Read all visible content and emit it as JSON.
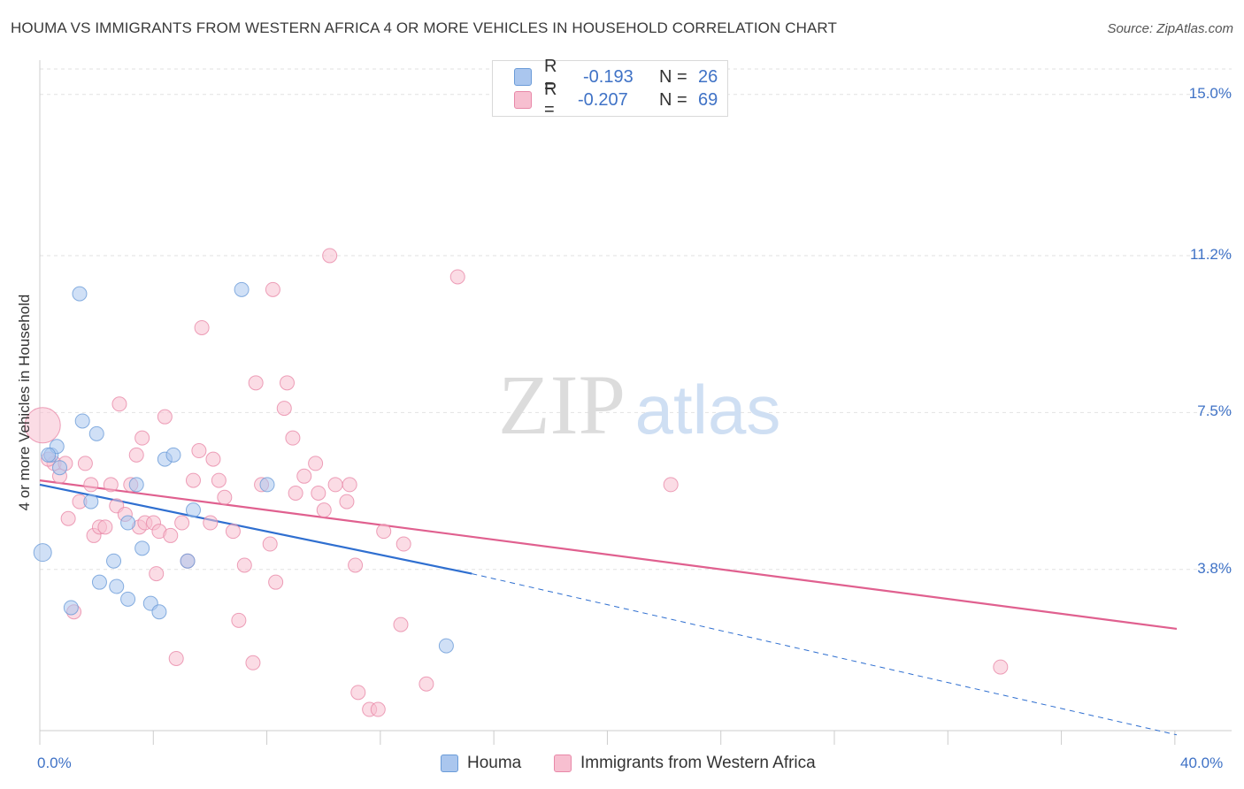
{
  "title": "HOUMA VS IMMIGRANTS FROM WESTERN AFRICA 4 OR MORE VEHICLES IN HOUSEHOLD CORRELATION CHART",
  "source": "Source: ZipAtlas.com",
  "watermark": {
    "zip": "ZIP",
    "atlas": "atlas"
  },
  "legend_top": {
    "rows": [
      {
        "r_label": "R =",
        "r_value": "-0.193",
        "n_label": "N =",
        "n_value": "26",
        "color": "#aac6ee",
        "border": "#6a9bd8"
      },
      {
        "r_label": "R =",
        "r_value": "-0.207",
        "n_label": "N =",
        "n_value": "69",
        "color": "#f7bfd0",
        "border": "#e888a8"
      }
    ]
  },
  "legend_bottom": [
    {
      "label": "Houma",
      "color": "#aac6ee",
      "border": "#6a9bd8"
    },
    {
      "label": "Immigrants from Western Africa",
      "color": "#f7bfd0",
      "border": "#e888a8"
    }
  ],
  "axis": {
    "x_min_label": "0.0%",
    "x_max_label": "40.0%",
    "ylabel": "4 or more Vehicles in Household",
    "y_ticks": [
      {
        "value": 3.8,
        "label": "3.8%"
      },
      {
        "value": 7.5,
        "label": "7.5%"
      },
      {
        "value": 11.2,
        "label": "11.2%"
      },
      {
        "value": 15.0,
        "label": "15.0%"
      }
    ]
  },
  "chart_data": {
    "type": "scatter",
    "xlim": [
      0,
      40
    ],
    "ylim": [
      0.0,
      15.6
    ],
    "grid": true,
    "series": [
      {
        "name": "Houma",
        "color": "#6a9bd8",
        "fill": "#aac6ee",
        "trend": {
          "x0": 0,
          "y0": 5.8,
          "x1": 15.2,
          "y1": 3.7,
          "dash_to_x": 40,
          "dash_to_y": -0.1
        },
        "points": [
          {
            "x": 0.1,
            "y": 4.2,
            "s": 10
          },
          {
            "x": 0.4,
            "y": 6.5,
            "s": 8
          },
          {
            "x": 0.6,
            "y": 6.7,
            "s": 8
          },
          {
            "x": 0.7,
            "y": 6.2,
            "s": 8
          },
          {
            "x": 1.1,
            "y": 2.9,
            "s": 8
          },
          {
            "x": 1.4,
            "y": 10.3,
            "s": 8
          },
          {
            "x": 1.5,
            "y": 7.3,
            "s": 8
          },
          {
            "x": 1.8,
            "y": 5.4,
            "s": 8
          },
          {
            "x": 2.0,
            "y": 7.0,
            "s": 8
          },
          {
            "x": 2.1,
            "y": 3.5,
            "s": 8
          },
          {
            "x": 2.6,
            "y": 4.0,
            "s": 8
          },
          {
            "x": 2.7,
            "y": 3.4,
            "s": 8
          },
          {
            "x": 3.1,
            "y": 3.1,
            "s": 8
          },
          {
            "x": 3.1,
            "y": 4.9,
            "s": 8
          },
          {
            "x": 3.4,
            "y": 5.8,
            "s": 8
          },
          {
            "x": 3.6,
            "y": 4.3,
            "s": 8
          },
          {
            "x": 3.9,
            "y": 3.0,
            "s": 8
          },
          {
            "x": 4.2,
            "y": 2.8,
            "s": 8
          },
          {
            "x": 4.4,
            "y": 6.4,
            "s": 8
          },
          {
            "x": 4.7,
            "y": 6.5,
            "s": 8
          },
          {
            "x": 5.2,
            "y": 4.0,
            "s": 8
          },
          {
            "x": 5.4,
            "y": 5.2,
            "s": 8
          },
          {
            "x": 7.1,
            "y": 10.4,
            "s": 8
          },
          {
            "x": 8.0,
            "y": 5.8,
            "s": 8
          },
          {
            "x": 14.3,
            "y": 2.0,
            "s": 8
          },
          {
            "x": 0.3,
            "y": 6.5,
            "s": 8
          }
        ]
      },
      {
        "name": "Immigrants from Western Africa",
        "color": "#e888a8",
        "fill": "#f7bfd0",
        "trend": {
          "x0": 0,
          "y0": 5.9,
          "x1": 40,
          "y1": 2.4
        },
        "points": [
          {
            "x": 0.1,
            "y": 7.2,
            "s": 20
          },
          {
            "x": 0.5,
            "y": 6.3,
            "s": 8
          },
          {
            "x": 0.7,
            "y": 6.0,
            "s": 8
          },
          {
            "x": 0.9,
            "y": 6.3,
            "s": 8
          },
          {
            "x": 1.0,
            "y": 5.0,
            "s": 8
          },
          {
            "x": 1.2,
            "y": 2.8,
            "s": 8
          },
          {
            "x": 1.4,
            "y": 5.4,
            "s": 8
          },
          {
            "x": 1.6,
            "y": 6.3,
            "s": 8
          },
          {
            "x": 1.8,
            "y": 5.8,
            "s": 8
          },
          {
            "x": 1.9,
            "y": 4.6,
            "s": 8
          },
          {
            "x": 2.1,
            "y": 4.8,
            "s": 8
          },
          {
            "x": 2.3,
            "y": 4.8,
            "s": 8
          },
          {
            "x": 2.5,
            "y": 5.8,
            "s": 8
          },
          {
            "x": 2.7,
            "y": 5.3,
            "s": 8
          },
          {
            "x": 2.8,
            "y": 7.7,
            "s": 8
          },
          {
            "x": 3.0,
            "y": 5.1,
            "s": 8
          },
          {
            "x": 3.2,
            "y": 5.8,
            "s": 8
          },
          {
            "x": 3.4,
            "y": 6.5,
            "s": 8
          },
          {
            "x": 3.5,
            "y": 4.8,
            "s": 8
          },
          {
            "x": 3.6,
            "y": 6.9,
            "s": 8
          },
          {
            "x": 3.7,
            "y": 4.9,
            "s": 8
          },
          {
            "x": 4.0,
            "y": 4.9,
            "s": 8
          },
          {
            "x": 4.1,
            "y": 3.7,
            "s": 8
          },
          {
            "x": 4.2,
            "y": 4.7,
            "s": 8
          },
          {
            "x": 4.4,
            "y": 7.4,
            "s": 8
          },
          {
            "x": 4.6,
            "y": 4.6,
            "s": 8
          },
          {
            "x": 4.8,
            "y": 1.7,
            "s": 8
          },
          {
            "x": 5.0,
            "y": 4.9,
            "s": 8
          },
          {
            "x": 5.2,
            "y": 4.0,
            "s": 8
          },
          {
            "x": 5.4,
            "y": 5.9,
            "s": 8
          },
          {
            "x": 5.6,
            "y": 6.6,
            "s": 8
          },
          {
            "x": 5.7,
            "y": 9.5,
            "s": 8
          },
          {
            "x": 6.0,
            "y": 4.9,
            "s": 8
          },
          {
            "x": 6.1,
            "y": 6.4,
            "s": 8
          },
          {
            "x": 6.3,
            "y": 5.9,
            "s": 8
          },
          {
            "x": 6.5,
            "y": 5.5,
            "s": 8
          },
          {
            "x": 6.8,
            "y": 4.7,
            "s": 8
          },
          {
            "x": 7.0,
            "y": 2.6,
            "s": 8
          },
          {
            "x": 7.2,
            "y": 3.9,
            "s": 8
          },
          {
            "x": 7.5,
            "y": 1.6,
            "s": 8
          },
          {
            "x": 7.6,
            "y": 8.2,
            "s": 8
          },
          {
            "x": 7.8,
            "y": 5.8,
            "s": 8
          },
          {
            "x": 8.1,
            "y": 4.4,
            "s": 8
          },
          {
            "x": 8.2,
            "y": 10.4,
            "s": 8
          },
          {
            "x": 8.3,
            "y": 3.5,
            "s": 8
          },
          {
            "x": 8.6,
            "y": 7.6,
            "s": 8
          },
          {
            "x": 8.7,
            "y": 8.2,
            "s": 8
          },
          {
            "x": 8.9,
            "y": 6.9,
            "s": 8
          },
          {
            "x": 9.0,
            "y": 5.6,
            "s": 8
          },
          {
            "x": 9.3,
            "y": 6.0,
            "s": 8
          },
          {
            "x": 9.7,
            "y": 6.3,
            "s": 8
          },
          {
            "x": 9.8,
            "y": 5.6,
            "s": 8
          },
          {
            "x": 10.0,
            "y": 5.2,
            "s": 8
          },
          {
            "x": 10.4,
            "y": 5.8,
            "s": 8
          },
          {
            "x": 10.2,
            "y": 11.2,
            "s": 8
          },
          {
            "x": 10.8,
            "y": 5.4,
            "s": 8
          },
          {
            "x": 10.9,
            "y": 5.8,
            "s": 8
          },
          {
            "x": 11.1,
            "y": 3.9,
            "s": 8
          },
          {
            "x": 11.2,
            "y": 0.9,
            "s": 8
          },
          {
            "x": 11.6,
            "y": 0.5,
            "s": 8
          },
          {
            "x": 11.9,
            "y": 0.5,
            "s": 8
          },
          {
            "x": 12.1,
            "y": 4.7,
            "s": 8
          },
          {
            "x": 12.8,
            "y": 4.4,
            "s": 8
          },
          {
            "x": 12.7,
            "y": 2.5,
            "s": 8
          },
          {
            "x": 13.6,
            "y": 1.1,
            "s": 8
          },
          {
            "x": 14.7,
            "y": 10.7,
            "s": 8
          },
          {
            "x": 22.2,
            "y": 5.8,
            "s": 8
          },
          {
            "x": 33.8,
            "y": 1.5,
            "s": 8
          },
          {
            "x": 0.3,
            "y": 6.4,
            "s": 8
          }
        ]
      }
    ]
  }
}
